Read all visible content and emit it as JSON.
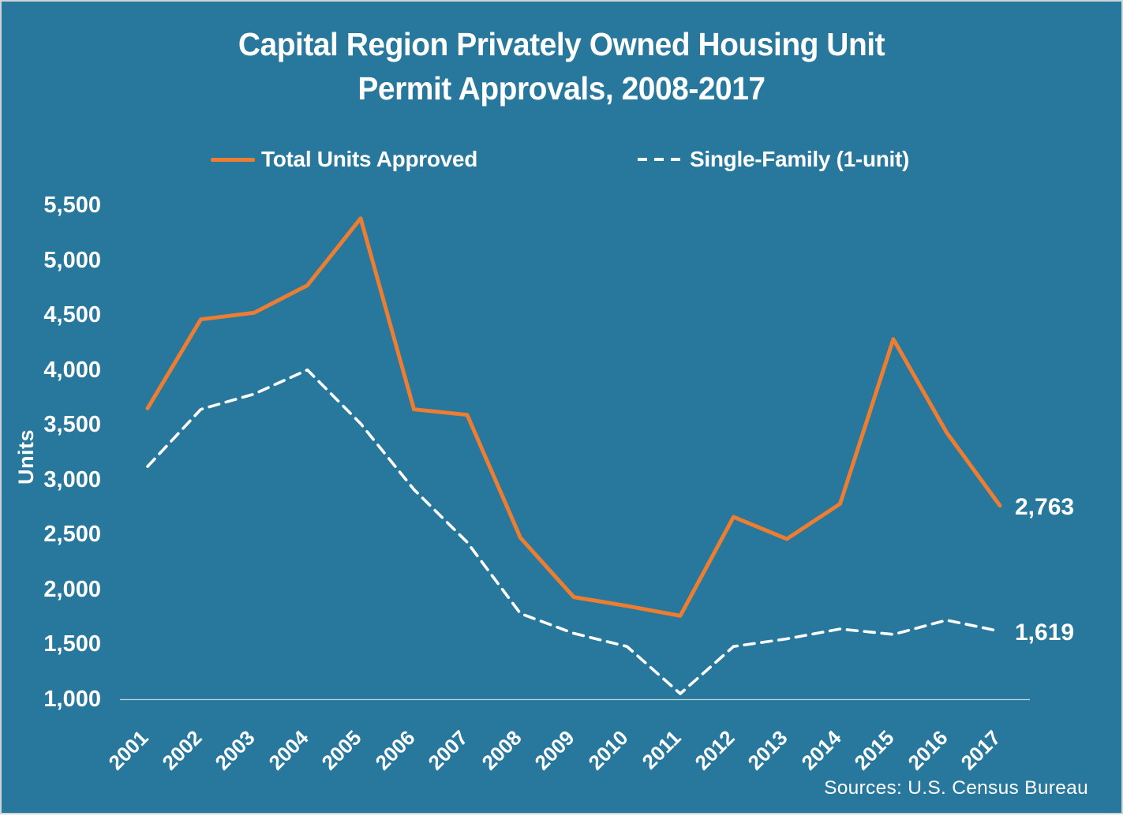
{
  "title": {
    "line1": "Capital Region Privately Owned Housing Unit",
    "line2": "Permit Approvals, 2008-2017"
  },
  "legend": [
    {
      "label": "Total Units Approved",
      "swatch": "solid-orange-line"
    },
    {
      "label": "Single-Family (1-unit)",
      "swatch": "dashed-white-line"
    }
  ],
  "y_axis": {
    "title": "Units",
    "tick_labels": [
      "5,500",
      "5,000",
      "4,500",
      "4,000",
      "3,500",
      "3,000",
      "2,500",
      "2,000",
      "1,500",
      "1,000"
    ]
  },
  "x_axis": {
    "year_labels": [
      "2001",
      "2002",
      "2003",
      "2004",
      "2005",
      "2006",
      "2007",
      "2008",
      "2009",
      "2010",
      "2011",
      "2012",
      "2013",
      "2014",
      "2015",
      "2016",
      "2017"
    ]
  },
  "annotations": {
    "total_end_label": "2,763",
    "single_end_label": "1,619"
  },
  "source": {
    "text": "Sources: U.S. Census Bureau"
  },
  "colors": {
    "background": "#27789C",
    "frame_border": "#CDD5D9",
    "total_line": "#ED7D31",
    "single_line": "#FFFFFF",
    "axis_line": "#D9E2E5",
    "text": "#FFFFFF"
  },
  "chart_data": {
    "type": "line",
    "title": "Capital Region Privately Owned Housing Unit Permit Approvals, 2008-2017",
    "x": [
      2001,
      2002,
      2003,
      2004,
      2005,
      2006,
      2007,
      2008,
      2009,
      2010,
      2011,
      2012,
      2013,
      2014,
      2015,
      2016,
      2017
    ],
    "series": [
      {
        "name": "Total Units Approved",
        "style": "solid",
        "color": "#ED7D31",
        "values": [
          3650,
          4460,
          4520,
          4770,
          5380,
          3640,
          3590,
          2470,
          1930,
          1850,
          1760,
          2660,
          2460,
          2780,
          4280,
          3430,
          2763
        ],
        "end_label": 2763
      },
      {
        "name": "Single-Family (1-unit)",
        "style": "dashed",
        "color": "#FFFFFF",
        "values": [
          3120,
          3640,
          3780,
          4000,
          3510,
          2910,
          2430,
          1780,
          1600,
          1480,
          1050,
          1480,
          1550,
          1640,
          1590,
          1720,
          1619
        ],
        "end_label": 1619
      }
    ],
    "xlabel": "",
    "ylabel": "Units",
    "ylim": [
      1000,
      5500
    ],
    "ytick_step": 500,
    "grid": false,
    "legend_position": "top"
  }
}
